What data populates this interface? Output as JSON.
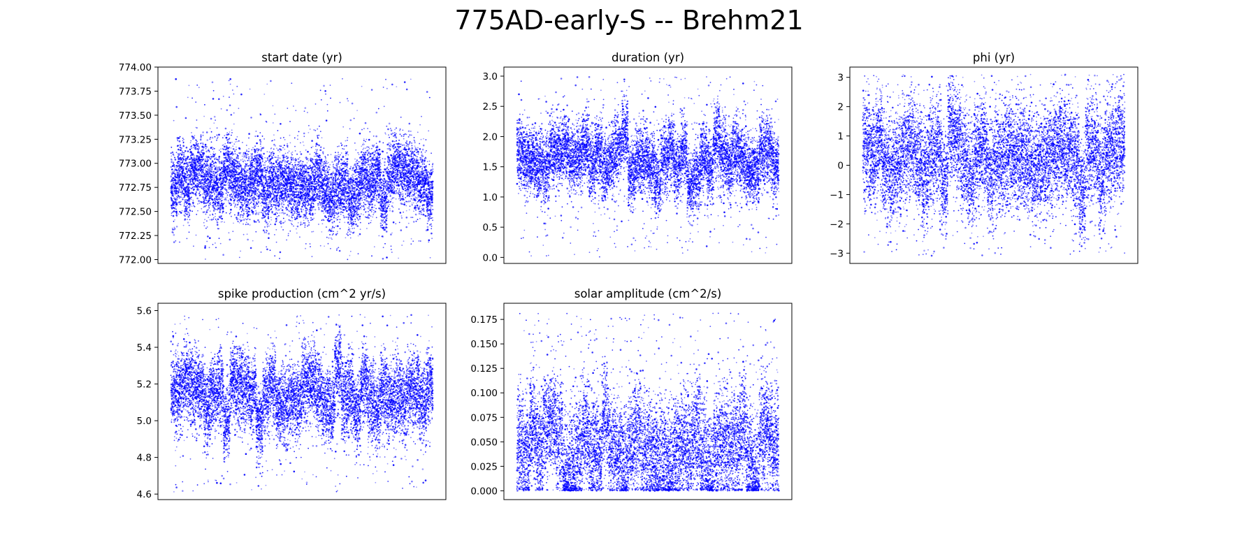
{
  "figure": {
    "title": "775AD-early-S -- Brehm21"
  },
  "chart_data": [
    {
      "type": "scatter",
      "title": "start date (yr)",
      "xlabel": "",
      "ylabel": "",
      "x_ticks_visible": false,
      "ylim": [
        771.96,
        774.0
      ],
      "yticks": [
        772.0,
        772.25,
        772.5,
        772.75,
        773.0,
        773.25,
        773.5,
        773.75,
        774.0
      ],
      "ytick_labels": [
        "772.00",
        "772.25",
        "772.50",
        "772.75",
        "773.00",
        "773.25",
        "773.50",
        "773.75",
        "774.00"
      ],
      "x_range": [
        0,
        10000
      ],
      "n_points": 10000,
      "center": 772.8,
      "spread": 0.22,
      "observed_min": 772.0,
      "observed_max": 773.88,
      "marker_color": "#0000ff"
    },
    {
      "type": "scatter",
      "title": "duration (yr)",
      "xlabel": "",
      "ylabel": "",
      "x_ticks_visible": false,
      "ylim": [
        -0.1,
        3.15
      ],
      "yticks": [
        0.0,
        0.5,
        1.0,
        1.5,
        2.0,
        2.5,
        3.0
      ],
      "ytick_labels": [
        "0.0",
        "0.5",
        "1.0",
        "1.5",
        "2.0",
        "2.5",
        "3.0"
      ],
      "x_range": [
        0,
        10000
      ],
      "n_points": 10000,
      "center": 1.6,
      "spread": 0.35,
      "observed_min": 0.0,
      "observed_max": 3.0,
      "marker_color": "#0000ff"
    },
    {
      "type": "scatter",
      "title": "phi (yr)",
      "xlabel": "",
      "ylabel": "",
      "x_ticks_visible": false,
      "ylim": [
        -3.35,
        3.35
      ],
      "yticks": [
        -3,
        -2,
        -1,
        0,
        1,
        2,
        3
      ],
      "ytick_labels": [
        "−3",
        "−2",
        "−1",
        "0",
        "1",
        "2",
        "3"
      ],
      "x_range": [
        0,
        10000
      ],
      "n_points": 10000,
      "center": 0.3,
      "spread": 1.1,
      "observed_min": -3.1,
      "observed_max": 3.1,
      "marker_color": "#0000ff"
    },
    {
      "type": "scatter",
      "title": "spike production (cm^2 yr/s)",
      "xlabel": "",
      "ylabel": "",
      "x_ticks_visible": false,
      "ylim": [
        4.57,
        5.64
      ],
      "yticks": [
        4.6,
        4.8,
        5.0,
        5.2,
        5.4,
        5.6
      ],
      "ytick_labels": [
        "4.6",
        "4.8",
        "5.0",
        "5.2",
        "5.4",
        "5.6"
      ],
      "x_range": [
        0,
        10000
      ],
      "n_points": 10000,
      "center": 5.15,
      "spread": 0.13,
      "observed_min": 4.61,
      "observed_max": 5.58,
      "marker_color": "#0000ff"
    },
    {
      "type": "scatter",
      "title": "solar amplitude (cm^2/s)",
      "xlabel": "",
      "ylabel": "",
      "x_ticks_visible": false,
      "ylim": [
        -0.009,
        0.1915
      ],
      "yticks": [
        0.0,
        0.025,
        0.05,
        0.075,
        0.1,
        0.125,
        0.15,
        0.175
      ],
      "ytick_labels": [
        "0.000",
        "0.025",
        "0.050",
        "0.075",
        "0.100",
        "0.125",
        "0.150",
        "0.175"
      ],
      "x_range": [
        0,
        10000
      ],
      "n_points": 10000,
      "center": 0.04,
      "spread": 0.035,
      "observed_min": 0.0,
      "observed_max": 0.182,
      "marker_color": "#0000ff"
    }
  ]
}
